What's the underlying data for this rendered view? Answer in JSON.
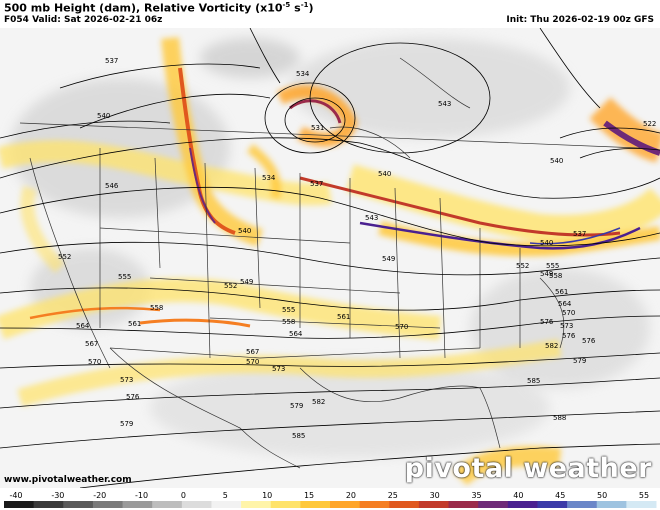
{
  "header": {
    "title_main": "500 mb Height (dam), Relative Vorticity (x10",
    "title_exp": "-5",
    "title_unit_a": " s",
    "title_unit_exp": "-1",
    "title_unit_b": ")",
    "valid": "F054 Valid: Sat 2026-02-21 06z",
    "init": "Init: Thu 2026-02-19 00z GFS"
  },
  "footer": {
    "credit": "www.pivotalweather.com",
    "brand": "pivotal weather"
  },
  "colorbar": {
    "ticks": [
      "-40",
      "-30",
      "-20",
      "-10",
      "0",
      "5",
      "10",
      "15",
      "20",
      "25",
      "30",
      "35",
      "40",
      "45",
      "50",
      "55"
    ],
    "colors": [
      "#1a1a1a",
      "#3a3a3a",
      "#5a5a5a",
      "#7a7a7a",
      "#9a9a9a",
      "#bdbdbd",
      "#dcdcdc",
      "#f2f2f2",
      "#fff4a8",
      "#ffe36a",
      "#ffc83a",
      "#ffa62a",
      "#f57e22",
      "#e0581e",
      "#c23a2a",
      "#9a2a4a",
      "#6e2a78",
      "#4a2090",
      "#3a3aa8",
      "#6a86c8",
      "#9ec3e0",
      "#d4e9f4"
    ]
  },
  "height_labels": [
    {
      "t": "537"
    },
    {
      "t": "540"
    },
    {
      "t": "543"
    },
    {
      "t": "546"
    },
    {
      "t": "549"
    },
    {
      "t": "552"
    },
    {
      "t": "555"
    },
    {
      "t": "558"
    },
    {
      "t": "561"
    },
    {
      "t": "564"
    },
    {
      "t": "567"
    },
    {
      "t": "570"
    },
    {
      "t": "573"
    },
    {
      "t": "576"
    },
    {
      "t": "579"
    },
    {
      "t": "582"
    },
    {
      "t": "585"
    },
    {
      "t": "588"
    },
    {
      "t": "534"
    },
    {
      "t": "531"
    },
    {
      "t": "522"
    }
  ]
}
